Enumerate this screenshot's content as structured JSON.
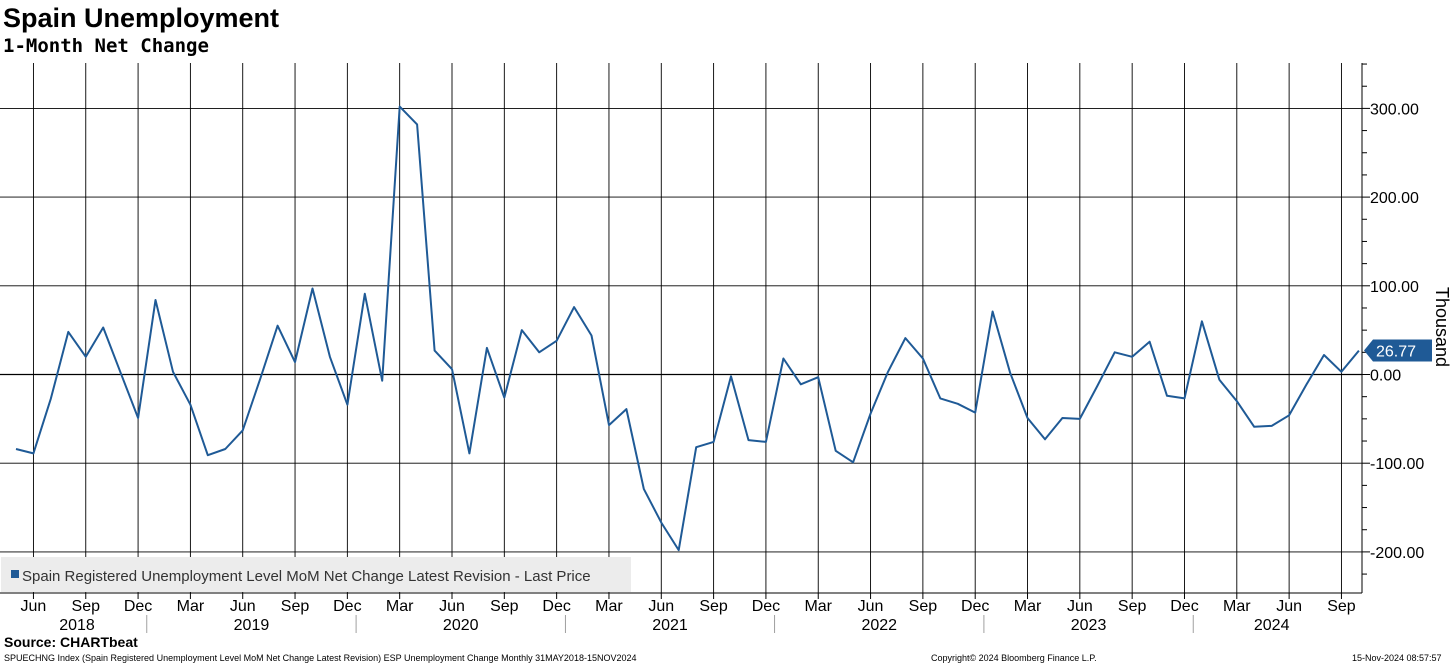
{
  "title": "Spain Unemployment",
  "subtitle": "1-Month Net Change",
  "source": "Source: CHARTbeat",
  "footer": {
    "left": "SPUECHNG Index (Spain Registered Unemployment Level MoM Net Change Latest Revision) ESP Unemployment Change  Monthly 31MAY2018-15NOV2024",
    "middle": "Copyright© 2024 Bloomberg Finance L.P.",
    "right": "15-Nov-2024 08:57:57"
  },
  "colors": {
    "series": "#1f5a96",
    "grid": "#000000",
    "zero": "#000000"
  },
  "chart_data": {
    "type": "line",
    "ylabel": "Thousand",
    "ylim": [
      -250,
      350
    ],
    "yticks": [
      {
        "value": 300,
        "label": "300.00"
      },
      {
        "value": 200,
        "label": "200.00"
      },
      {
        "value": 100,
        "label": "100.00"
      },
      {
        "value": 0,
        "label": "0.00"
      },
      {
        "value": -100,
        "label": "-100.00"
      },
      {
        "value": -200,
        "label": "-200.00"
      }
    ],
    "month_ticks": [
      "Jun",
      "Sep",
      "Dec",
      "Mar",
      "Jun",
      "Sep",
      "Dec",
      "Mar",
      "Jun",
      "Sep",
      "Dec",
      "Mar",
      "Jun",
      "Sep",
      "Dec",
      "Mar",
      "Jun",
      "Sep",
      "Dec",
      "Mar",
      "Jun",
      "Sep",
      "Dec",
      "Mar",
      "Jun",
      "Sep",
      "Dec",
      "Mar",
      "Jun",
      "Sep"
    ],
    "year_ticks": [
      "2018",
      "2019",
      "2020",
      "2021",
      "2022",
      "2023",
      "2024"
    ],
    "last_value": "26.77",
    "legend": "Spain Registered Unemployment Level MoM Net Change Latest Revision - Last Price",
    "series": [
      {
        "name": "Spain Registered Unemployment Level MoM Net Change Latest Revision - Last Price",
        "x": [
          "2018-05",
          "2018-06",
          "2018-07",
          "2018-08",
          "2018-09",
          "2018-10",
          "2018-11",
          "2018-12",
          "2019-01",
          "2019-02",
          "2019-03",
          "2019-04",
          "2019-05",
          "2019-06",
          "2019-07",
          "2019-08",
          "2019-09",
          "2019-10",
          "2019-11",
          "2019-12",
          "2020-01",
          "2020-02",
          "2020-03",
          "2020-04",
          "2020-05",
          "2020-06",
          "2020-07",
          "2020-08",
          "2020-09",
          "2020-10",
          "2020-11",
          "2020-12",
          "2021-01",
          "2021-02",
          "2021-03",
          "2021-04",
          "2021-05",
          "2021-06",
          "2021-07",
          "2021-08",
          "2021-09",
          "2021-10",
          "2021-11",
          "2021-12",
          "2022-01",
          "2022-02",
          "2022-03",
          "2022-04",
          "2022-05",
          "2022-06",
          "2022-07",
          "2022-08",
          "2022-09",
          "2022-10",
          "2022-11",
          "2022-12",
          "2023-01",
          "2023-02",
          "2023-03",
          "2023-04",
          "2023-05",
          "2023-06",
          "2023-07",
          "2023-08",
          "2023-09",
          "2023-10",
          "2023-11",
          "2023-12",
          "2024-01",
          "2024-02",
          "2024-03",
          "2024-04",
          "2024-05",
          "2024-06",
          "2024-07",
          "2024-08",
          "2024-09",
          "2024-10"
        ],
        "values": [
          -84,
          -89,
          -27,
          48,
          20,
          53,
          2,
          -49,
          84,
          3,
          -34,
          -91,
          -84,
          -63,
          -5,
          55,
          14,
          97,
          20,
          -34,
          91,
          -7,
          302,
          282,
          27,
          6,
          -89,
          30,
          -26,
          50,
          25,
          38,
          76,
          44,
          -57,
          -39,
          -129,
          -167,
          -198,
          -82,
          -76,
          -2,
          -74,
          -76,
          18,
          -11,
          -3,
          -86,
          -99,
          -44,
          3,
          41,
          18,
          -27,
          -33,
          -43,
          71,
          2,
          -49,
          -73,
          -49,
          -50,
          -13,
          25,
          20,
          37,
          -24,
          -27,
          60,
          -6,
          -30,
          -59,
          -58,
          -46,
          -11,
          22,
          3,
          27
        ]
      }
    ]
  }
}
